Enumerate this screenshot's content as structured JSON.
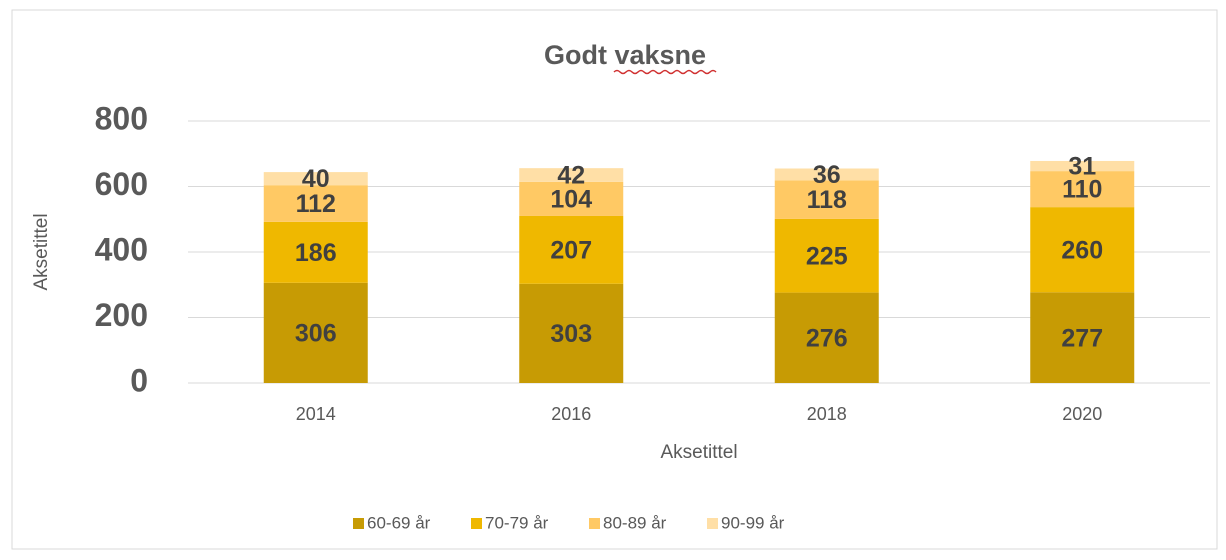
{
  "chart_data": {
    "type": "stacked_bar",
    "title": "Godt vaksne",
    "y_axis_label": "Aksetittel",
    "x_axis_label": "Aksetittel",
    "categories": [
      "2014",
      "2016",
      "2018",
      "2020"
    ],
    "series": [
      {
        "name": "60-69 år",
        "color": "#c79b04",
        "values": [
          306,
          303,
          276,
          277
        ]
      },
      {
        "name": "70-79 år",
        "color": "#efb800",
        "values": [
          186,
          207,
          225,
          260
        ]
      },
      {
        "name": "80-89 år",
        "color": "#ffc964",
        "values": [
          112,
          104,
          118,
          110
        ]
      },
      {
        "name": "90-99 år",
        "color": "#ffdfa6",
        "values": [
          40,
          42,
          36,
          31
        ]
      }
    ],
    "ylim": [
      0,
      800
    ],
    "yticks": [
      0,
      200,
      400,
      600,
      800
    ],
    "grid": true,
    "legend": "bottom"
  }
}
